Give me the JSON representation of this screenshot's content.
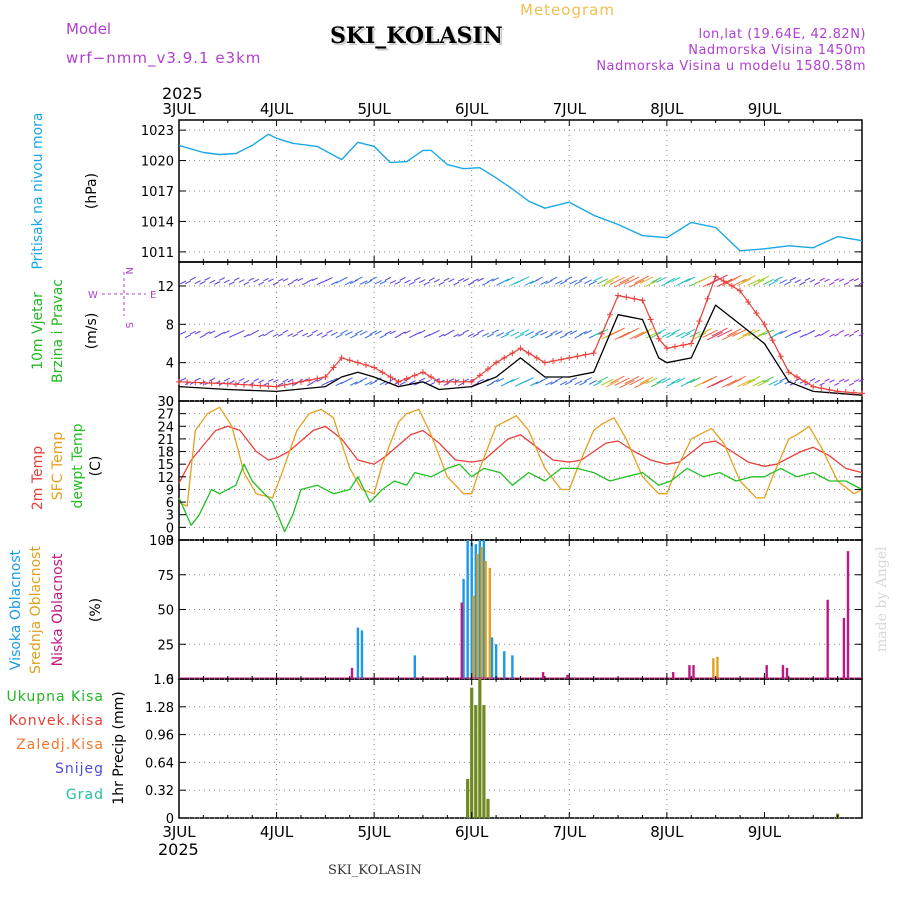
{
  "header": {
    "model_label": "Model",
    "model_name": "wrf−nmm_v3.9.1 e3km",
    "station": "SKI_KOLASIN",
    "chart_type": "Meteogram",
    "lonlat": "lon,lat (19.64E, 42.82N)",
    "elevation": "Nadmorska Visina 1450m",
    "model_elevation": "Nadmorska Visina u modelu 1580.58m",
    "year_top": "2025",
    "year_bottom": "2025",
    "footer_station": "SKI_KOLASIN",
    "watermark": "made by Angel"
  },
  "colors": {
    "pressure": "#1aa7e6",
    "wind_black": "#000000",
    "gust": "#e8403a",
    "temp2m": "#e8403a",
    "sfc": "#e6a020",
    "dew": "#22c022",
    "high_cloud": "#1a9ae6",
    "mid_cloud": "#e0a020",
    "low_cloud": "#c01880",
    "precip_total": "#6f8a22",
    "precip_label_total": "#22b822",
    "precip_label_conv": "#e8403a",
    "precip_label_frz": "#f07a30",
    "precip_label_snow": "#4a4ae0",
    "precip_label_grad": "#22c0a0",
    "purple": "#b040d0"
  },
  "chart_data": [
    {
      "id": "pressure",
      "type": "line",
      "title": "Pritisak na nivou mora",
      "ylabel": "(hPa)",
      "ylim": [
        1010,
        1024
      ],
      "yticks": [
        1011,
        1014,
        1017,
        1020,
        1023
      ],
      "x_days": [
        "3JUL",
        "4JUL",
        "5JUL",
        "6JUL",
        "7JUL",
        "8JUL",
        "9JUL"
      ],
      "x_hours": [
        0,
        6,
        10,
        14,
        18,
        22,
        24,
        28,
        34,
        40,
        44,
        48,
        52,
        56,
        60,
        62,
        66,
        70,
        74,
        78,
        82,
        86,
        90,
        96,
        102,
        108,
        114,
        120,
        126,
        132,
        138,
        144,
        150,
        156,
        162,
        168
      ],
      "values": [
        1021.5,
        1020.8,
        1020.6,
        1020.7,
        1021.5,
        1022.6,
        1022.2,
        1021.7,
        1021.4,
        1020.1,
        1021.8,
        1021.4,
        1019.8,
        1019.9,
        1021.0,
        1021.0,
        1019.6,
        1019.2,
        1019.3,
        1018.3,
        1017.2,
        1016.0,
        1015.3,
        1015.9,
        1014.6,
        1013.7,
        1012.6,
        1012.4,
        1013.9,
        1013.4,
        1011.1,
        1011.3,
        1011.6,
        1011.4,
        1012.5,
        1012.1
      ]
    },
    {
      "id": "wind",
      "type": "line",
      "title": "10m Vjetar",
      "subtitle": "Brzina i Pravac",
      "ylabel": "(m/s)",
      "ylim": [
        0,
        14.5
      ],
      "yticks": [
        0,
        4,
        8,
        12
      ],
      "compass": {
        "w": "W",
        "n": "N",
        "e": "E",
        "s": "S"
      },
      "series": [
        {
          "name": "speed",
          "x_hours": [
            0,
            12,
            24,
            36,
            40,
            44,
            48,
            54,
            60,
            64,
            72,
            78,
            84,
            90,
            96,
            102,
            108,
            114,
            118,
            120,
            126,
            132,
            138,
            144,
            150,
            156,
            162,
            168
          ],
          "values": [
            1.5,
            1.2,
            1.0,
            1.5,
            2.5,
            3.0,
            2.5,
            1.5,
            2.0,
            1.2,
            1.5,
            2.5,
            4.5,
            2.5,
            2.5,
            3.0,
            9.0,
            8.5,
            4.5,
            4.0,
            4.5,
            10.0,
            8.0,
            6.0,
            2.0,
            1.0,
            0.8,
            0.6
          ]
        },
        {
          "name": "gust",
          "x_hours": [
            0,
            12,
            24,
            36,
            40,
            44,
            48,
            54,
            60,
            64,
            72,
            78,
            84,
            90,
            96,
            102,
            108,
            114,
            118,
            120,
            126,
            132,
            138,
            144,
            150,
            156,
            162,
            168
          ],
          "values": [
            2.0,
            1.8,
            1.5,
            2.5,
            4.5,
            4.0,
            3.5,
            2.0,
            3.0,
            2.0,
            2.0,
            4.0,
            5.5,
            4.0,
            4.5,
            5.0,
            11.0,
            10.5,
            6.5,
            5.5,
            6.0,
            13.0,
            11.5,
            8.0,
            3.0,
            1.5,
            1.0,
            0.8
          ]
        }
      ]
    },
    {
      "id": "temperature",
      "type": "line",
      "ylabel": "(C)",
      "ylim": [
        -3,
        30
      ],
      "yticks": [
        -3,
        0,
        3,
        6,
        9,
        12,
        15,
        18,
        21,
        24,
        27,
        30
      ],
      "series": [
        {
          "name": "2m Temp",
          "x_hours": [
            0,
            3,
            9,
            12,
            15,
            19,
            22,
            24,
            27,
            33,
            36,
            40,
            44,
            48,
            51,
            57,
            60,
            64,
            68,
            72,
            75,
            81,
            84,
            88,
            92,
            96,
            99,
            105,
            108,
            112,
            116,
            120,
            123,
            129,
            132,
            136,
            140,
            144,
            147,
            153,
            156,
            160,
            164,
            168
          ],
          "values": [
            10.5,
            16,
            23,
            24,
            23,
            18,
            16,
            16.5,
            18,
            23,
            24,
            21,
            16,
            15,
            17,
            22,
            23,
            20,
            16,
            15.5,
            16,
            21,
            22,
            19,
            16,
            15.5,
            16,
            20,
            20.5,
            18,
            16,
            15,
            15.5,
            20,
            20.5,
            18,
            15.5,
            14.5,
            15,
            18,
            19,
            17,
            14,
            13
          ]
        },
        {
          "name": "SFC Temp",
          "x_hours": [
            0,
            2,
            4,
            7,
            10,
            13,
            16,
            19,
            23,
            25,
            29,
            32,
            35,
            38,
            42,
            45,
            48,
            50,
            54,
            56,
            59,
            62,
            66,
            70,
            72,
            74,
            78,
            80,
            83,
            86,
            90,
            94,
            96,
            98,
            102,
            104,
            107,
            110,
            114,
            118,
            120,
            122,
            126,
            128,
            131,
            134,
            138,
            142,
            144,
            146,
            150,
            152,
            155,
            158,
            162,
            166,
            168
          ],
          "values": [
            6,
            5,
            23,
            27,
            28.5,
            24,
            13,
            8,
            7,
            12,
            23,
            27,
            28,
            26,
            14,
            9,
            8,
            15,
            25,
            27,
            28,
            22,
            12,
            8,
            8,
            14,
            24,
            25,
            26.5,
            23,
            14,
            9,
            9,
            14,
            23,
            24.5,
            26,
            21,
            12,
            8,
            8,
            13,
            21,
            22,
            23.5,
            20,
            11,
            7,
            7,
            12,
            21,
            22,
            24,
            19,
            11,
            8,
            9
          ]
        },
        {
          "name": "dewpt Temp",
          "x_hours": [
            0,
            3,
            5,
            8,
            10,
            14,
            16,
            18,
            20,
            23,
            26,
            28,
            30,
            34,
            38,
            42,
            44,
            47,
            50,
            53,
            56,
            58,
            62,
            66,
            69,
            72,
            75,
            79,
            82,
            86,
            90,
            94,
            98,
            102,
            106,
            110,
            114,
            118,
            121,
            125,
            129,
            133,
            137,
            141,
            144,
            148,
            152,
            156,
            160,
            164,
            168
          ],
          "values": [
            7,
            0.5,
            3,
            9,
            8,
            10,
            15,
            11,
            9,
            6,
            -1,
            3,
            9,
            10,
            8,
            9,
            12,
            6,
            9,
            11,
            10,
            13,
            12,
            14,
            15,
            12,
            14,
            13,
            10,
            13,
            11,
            14,
            14,
            13,
            11,
            12,
            13,
            10,
            11,
            14,
            12,
            13,
            11,
            12,
            12,
            14,
            12,
            13,
            11,
            11,
            9
          ]
        }
      ]
    },
    {
      "id": "cloud",
      "type": "bar",
      "ylabel": "(%)",
      "ylim": [
        0,
        100
      ],
      "yticks": [
        0,
        25,
        50,
        75,
        100
      ],
      "legend": [
        "Visoka Oblacnost",
        "Srednja Oblacnost",
        "Niska Oblacnost"
      ],
      "series": [
        {
          "name": "Visoka Oblacnost",
          "x_hours": [
            44,
            45,
            58,
            70,
            71,
            72,
            73,
            74,
            75,
            77,
            78,
            80,
            82
          ],
          "values": [
            37,
            35,
            17,
            72,
            100,
            98,
            97,
            100,
            100,
            30,
            25,
            20,
            17
          ]
        },
        {
          "name": "Srednja Oblacnost",
          "x_hours": [
            72,
            73,
            74,
            75,
            76,
            131,
            132
          ],
          "values": [
            60,
            90,
            95,
            85,
            80,
            15,
            16
          ]
        },
        {
          "name": "Niska Oblacnost",
          "x_hours": [
            43,
            70,
            90,
            96,
            122,
            126,
            127,
            145,
            149,
            150,
            160,
            164,
            165
          ],
          "values": [
            8,
            55,
            5,
            3,
            5,
            10,
            10,
            10,
            10,
            8,
            57,
            44,
            92
          ]
        }
      ]
    },
    {
      "id": "precip",
      "type": "bar",
      "ylabel": "1hr Precip (mm)",
      "ylim": [
        0,
        1.6
      ],
      "yticks": [
        0,
        0.32,
        0.64,
        0.96,
        1.28,
        1.6
      ],
      "legend": [
        "Ukupna Kisa",
        "Konvek.Kisa",
        "Zaledj.Kisa",
        "Snijeg",
        "Grad"
      ],
      "x_hours": [
        71,
        72,
        73,
        74,
        75,
        76,
        162
      ],
      "values": [
        0.45,
        1.5,
        1.3,
        1.6,
        1.3,
        0.22,
        0.05
      ]
    }
  ]
}
